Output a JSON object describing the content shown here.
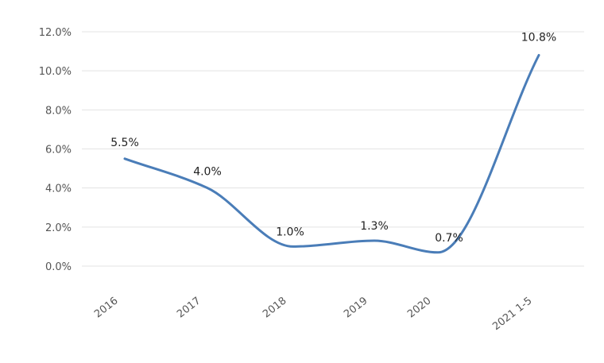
{
  "chart_data": {
    "type": "line",
    "categories": [
      "2016",
      "2017",
      "2018",
      "2019",
      "2020",
      "2021  1-5"
    ],
    "series": [
      {
        "values": [
          5.5,
          4.0,
          1.0,
          1.3,
          0.7,
          10.8
        ],
        "data_labels": [
          "5.5%",
          "4.0%",
          "1.0%",
          "1.3%",
          "0.7%",
          "10.8%"
        ],
        "color": "#4a7db8"
      }
    ],
    "y_ticks": [
      "0.0%",
      "2.0%",
      "4.0%",
      "6.0%",
      "8.0%",
      "10.0%",
      "12.0%"
    ],
    "ylim": [
      0,
      12
    ],
    "grid": true,
    "legend": "none",
    "smooth": true
  }
}
